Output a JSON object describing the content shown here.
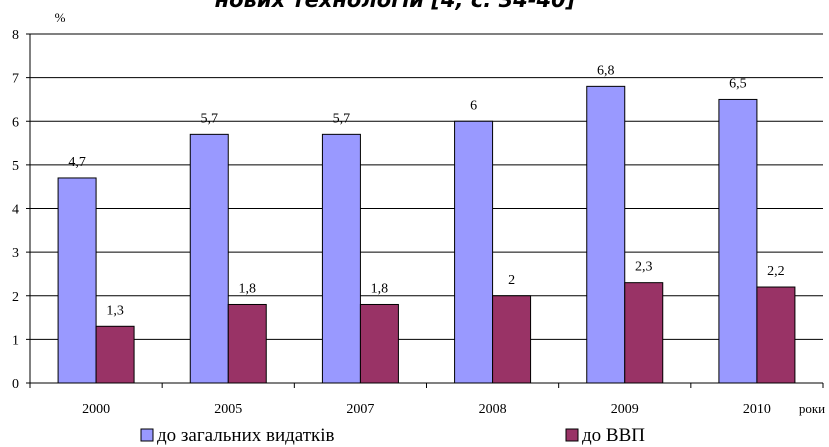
{
  "chart_data": {
    "type": "bar",
    "title": "нових технологій [4, с. 34-40]",
    "ylabel": "%",
    "xlabel": "роки",
    "categories": [
      "2000",
      "2005",
      "2007",
      "2008",
      "2009",
      "2010"
    ],
    "series": [
      {
        "name": "до загальних видатків",
        "values": [
          4.7,
          5.7,
          5.7,
          6,
          6.8,
          6.5
        ],
        "labels": [
          "4,7",
          "5,7",
          "5,7",
          "6",
          "6,8",
          "6,5"
        ],
        "color": "#9999ff"
      },
      {
        "name": "до ВВП",
        "values": [
          1.3,
          1.8,
          1.8,
          2,
          2.3,
          2.2
        ],
        "labels": [
          "1,3",
          "1,8",
          "1,8",
          "2",
          "2,3",
          "2,2"
        ],
        "color": "#993366"
      }
    ],
    "ylim": [
      0,
      8
    ],
    "yticks": [
      "0",
      "1",
      "2",
      "3",
      "4",
      "5",
      "6",
      "7",
      "8"
    ],
    "grid": true,
    "legend": "bottom"
  }
}
